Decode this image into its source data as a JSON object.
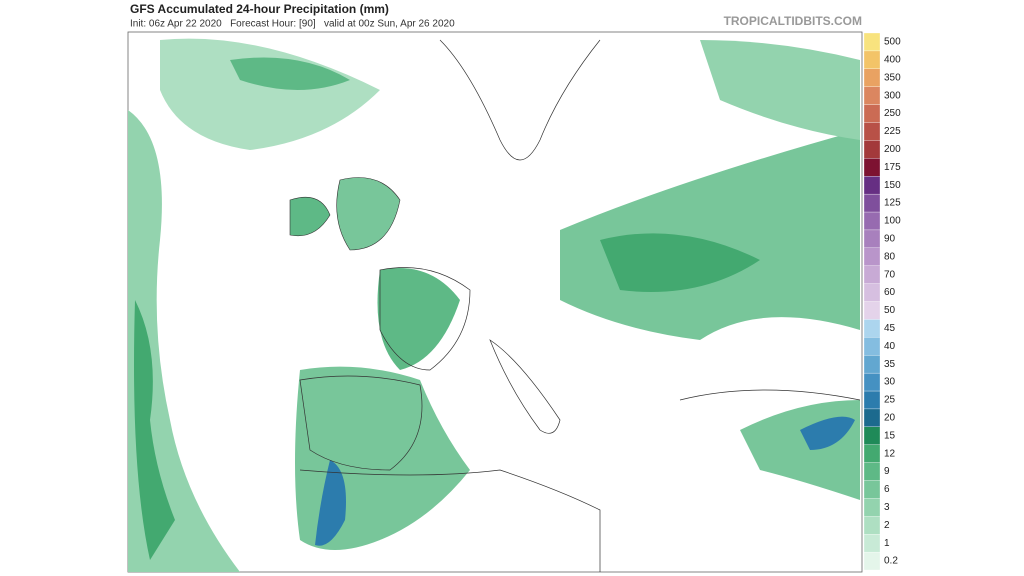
{
  "header": {
    "title": "GFS Accumulated 24-hour Precipitation (mm)",
    "subtitle": "Init: 06z Apr 22 2020   Forecast Hour: [90]   valid at 00z Sun, Apr 26 2020",
    "source": "TROPICALTIDBITS.COM"
  },
  "colorbar": {
    "labels": [
      "0.2",
      "1",
      "2",
      "3",
      "6",
      "9",
      "12",
      "15",
      "20",
      "25",
      "30",
      "35",
      "40",
      "45",
      "50",
      "60",
      "70",
      "80",
      "90",
      "100",
      "125",
      "150",
      "175",
      "200",
      "225",
      "250",
      "300",
      "350",
      "400",
      "500"
    ],
    "colors": [
      "#e4f5ea",
      "#c8ead6",
      "#aedfc2",
      "#93d3ae",
      "#78c69a",
      "#5eb986",
      "#43a970",
      "#1f8a58",
      "#1c6a8e",
      "#2c7cad",
      "#4591c2",
      "#62a7d0",
      "#84bde0",
      "#acd5ee",
      "#e4d3ea",
      "#d6bfe0",
      "#c8aad5",
      "#b995ca",
      "#a880bd",
      "#976bb0",
      "#7f4f9c",
      "#662f83",
      "#7d1231",
      "#a3393b",
      "#b85147",
      "#cb6b54",
      "#db8660",
      "#e9a262",
      "#f3c468",
      "#f8e37e"
    ]
  }
}
